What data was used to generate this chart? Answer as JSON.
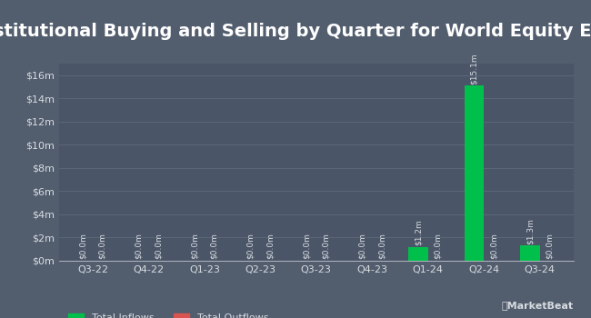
{
  "title": "Institutional Buying and Selling by Quarter for World Equity ETF",
  "quarters": [
    "Q3-22",
    "Q4-22",
    "Q1-23",
    "Q2-23",
    "Q3-23",
    "Q4-23",
    "Q1-24",
    "Q2-24",
    "Q3-24"
  ],
  "inflows": [
    0.0,
    0.0,
    0.0,
    0.0,
    0.0,
    0.0,
    1.2,
    15.1,
    1.3
  ],
  "outflows": [
    0.0,
    0.0,
    0.0,
    0.0,
    0.0,
    0.0,
    0.0,
    0.0,
    0.0
  ],
  "inflow_labels": [
    "$0.0m",
    "$0.0m",
    "$0.0m",
    "$0.0m",
    "$0.0m",
    "$0.0m",
    "$1.2m",
    "$15.1m",
    "$1.3m"
  ],
  "outflow_labels": [
    "$0.0m",
    "$0.0m",
    "$0.0m",
    "$0.0m",
    "$0.0m",
    "$0.0m",
    "$0.0m",
    "$0.0m",
    "$0.0m"
  ],
  "inflow_color": "#00c04b",
  "outflow_color": "#d9534f",
  "background_color": "#525d6e",
  "plot_bg_color": "#4a5568",
  "text_color": "#d8dce0",
  "grid_color": "#5e6b7a",
  "bar_width": 0.35,
  "ylim": [
    0,
    17
  ],
  "yticks": [
    0,
    2,
    4,
    6,
    8,
    10,
    12,
    14,
    16
  ],
  "ytick_labels": [
    "$0m",
    "$2m",
    "$4m",
    "$6m",
    "$8m",
    "$10m",
    "$12m",
    "$14m",
    "$16m"
  ],
  "legend_inflow": "Total Inflows",
  "legend_outflow": "Total Outflows",
  "title_fontsize": 14,
  "tick_fontsize": 8,
  "label_fontsize": 6.5
}
